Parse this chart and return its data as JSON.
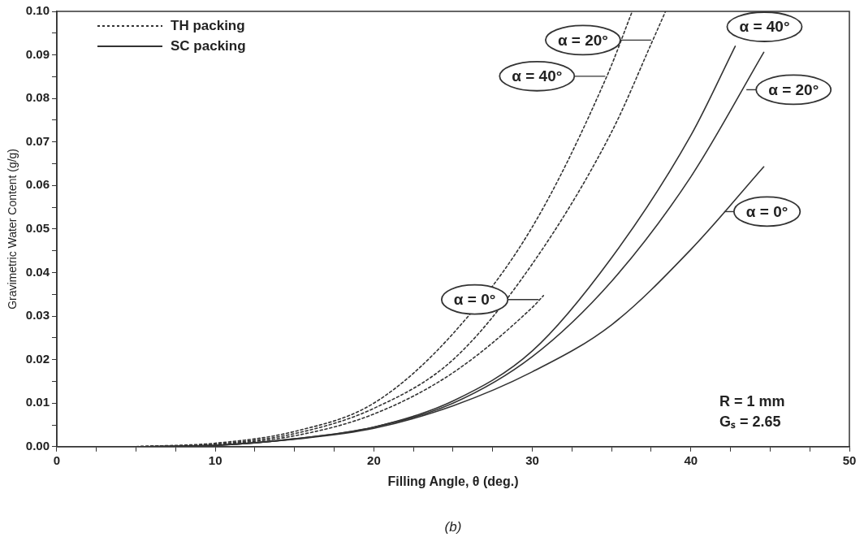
{
  "chart_data": {
    "type": "line",
    "xlabel": "Filling Angle, θ (deg.)",
    "ylabel": "Gravimetric Water Content (g/g)",
    "xlim": [
      0,
      50
    ],
    "ylim": [
      0,
      0.1
    ],
    "xticks": [
      0,
      {
        "value": 2.5,
        "label": null
      },
      {
        "value": 5,
        "label": null
      },
      {
        "value": 7.5,
        "label": null
      },
      10,
      {
        "value": 12.5,
        "label": null
      },
      {
        "value": 15,
        "label": null
      },
      {
        "value": 17.5,
        "label": null
      },
      20,
      {
        "value": 22.5,
        "label": null
      },
      {
        "value": 25,
        "label": null
      },
      {
        "value": 27.5,
        "label": null
      },
      30,
      {
        "value": 32.5,
        "label": null
      },
      {
        "value": 35,
        "label": null
      },
      {
        "value": 37.5,
        "label": null
      },
      40,
      {
        "value": 42.5,
        "label": null
      },
      {
        "value": 45,
        "label": null
      },
      {
        "value": 47.5,
        "label": null
      },
      50
    ],
    "yticks": [
      {
        "value": 0,
        "label": "0.00"
      },
      {
        "value": 0.005,
        "label": null
      },
      {
        "value": 0.01,
        "label": "0.01"
      },
      {
        "value": 0.015,
        "label": null
      },
      {
        "value": 0.02,
        "label": "0.02"
      },
      {
        "value": 0.025,
        "label": null
      },
      {
        "value": 0.03,
        "label": "0.03"
      },
      {
        "value": 0.035,
        "label": null
      },
      {
        "value": 0.04,
        "label": "0.04"
      },
      {
        "value": 0.045,
        "label": null
      },
      {
        "value": 0.05,
        "label": "0.05"
      },
      {
        "value": 0.055,
        "label": null
      },
      {
        "value": 0.06,
        "label": "0.06"
      },
      {
        "value": 0.065,
        "label": null
      },
      {
        "value": 0.07,
        "label": "0.07"
      },
      {
        "value": 0.075,
        "label": null
      },
      {
        "value": 0.08,
        "label": "0.08"
      },
      {
        "value": 0.085,
        "label": null
      },
      {
        "value": 0.09,
        "label": "0.09"
      },
      {
        "value": 0.095,
        "label": null
      },
      {
        "value": 0.1,
        "label": "0.10"
      }
    ],
    "grid": false,
    "legend": "top left",
    "marker": "none",
    "series": [
      {
        "name": "TH packing",
        "color": "#333333",
        "line_style": "dotted",
        "x": [
          5,
          10,
          15,
          20,
          25,
          30,
          34.7,
          36.3
        ],
        "values": [
          0,
          0.0008,
          0.0035,
          0.01,
          0.026,
          0.0505,
          0.0851,
          0.1
        ]
      },
      {
        "color": "#333333",
        "line_style": "dotted",
        "x": [
          5,
          10,
          15,
          20,
          25,
          30,
          35,
          37.6,
          38.4
        ],
        "values": [
          0,
          0.0006,
          0.003,
          0.0088,
          0.02,
          0.042,
          0.0723,
          0.0934,
          0.1
        ]
      },
      {
        "color": "#333333",
        "line_style": "dotted",
        "x": [
          5,
          10,
          15,
          20,
          25,
          30,
          30.7
        ],
        "values": [
          0,
          0.0005,
          0.0025,
          0.0075,
          0.017,
          0.032,
          0.0347
        ]
      },
      {
        "name": "SC packing",
        "color": "#333333",
        "line_style": "solid",
        "x": [
          5,
          10,
          15,
          20,
          25,
          30,
          35,
          40,
          42.8
        ],
        "values": [
          0,
          0.0003,
          0.0018,
          0.0045,
          0.0105,
          0.022,
          0.0434,
          0.0715,
          0.092
        ]
      },
      {
        "color": "#333333",
        "line_style": "solid",
        "x": [
          5,
          10,
          15,
          20,
          25,
          30,
          35,
          40,
          44.6
        ],
        "values": [
          0,
          0.0003,
          0.0018,
          0.0045,
          0.01,
          0.0207,
          0.038,
          0.062,
          0.0906
        ]
      },
      {
        "color": "#333333",
        "line_style": "solid",
        "x": [
          5,
          10,
          15,
          20,
          25,
          30,
          35,
          40,
          44.6
        ],
        "values": [
          0,
          0.0003,
          0.0017,
          0.0042,
          0.0094,
          0.0172,
          0.028,
          0.0453,
          0.0643
        ]
      }
    ],
    "annotations": [
      {
        "text": "α = 20°",
        "x": 37.6,
        "y": 0.0934
      },
      {
        "text": "α = 40°",
        "x": 34.7,
        "y": 0.0851
      },
      {
        "text": "α = 0°",
        "x": 30.5,
        "y": 0.0338
      },
      {
        "text": "α = 40°",
        "x": 42.8,
        "y": 0.092
      },
      {
        "text": "α = 20°",
        "x": 43.4,
        "y": 0.082
      },
      {
        "text": "α = 0°",
        "x": 42,
        "y": 0.054
      },
      "R = 1 mm",
      "Gₛ = 2.65",
      "(b)"
    ]
  }
}
